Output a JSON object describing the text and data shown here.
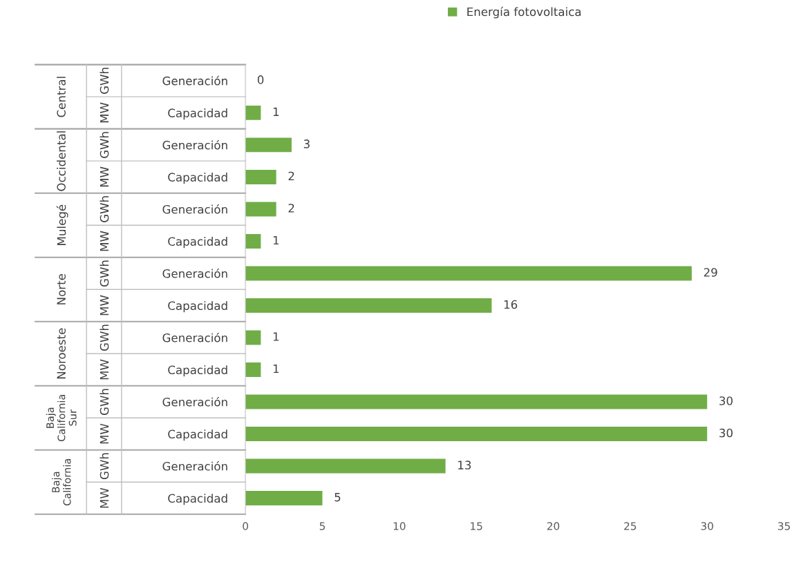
{
  "chart_data": {
    "type": "bar",
    "orientation": "horizontal",
    "categories": [
      "Generación",
      "Capacidad",
      "Generación",
      "Capacidad",
      "Generación",
      "Capacidad",
      "Generación",
      "Capacidad",
      "Generación",
      "Capacidad",
      "Generación",
      "Capacidad",
      "Generación",
      "Capacidad"
    ],
    "series": [
      {
        "name": "Energía fotovoltaica",
        "color": "#70ad47",
        "values": [
          0,
          1,
          3,
          2,
          2,
          1,
          29,
          16,
          1,
          1,
          30,
          30,
          13,
          5
        ]
      }
    ],
    "annotations": [
      "Central",
      "GWh",
      "MW",
      "Occidental",
      "GWh",
      "MW",
      "Mulegé",
      "GWh",
      "MW",
      "Norte",
      "GWh",
      "MW",
      "Noroeste",
      "GWh",
      "MW",
      "Baja California Sur",
      "GWh",
      "MW",
      "Baja California",
      "GWh",
      "MW"
    ],
    "xlim": [
      0,
      35
    ],
    "xticks": [
      0,
      5,
      10,
      15,
      20,
      25,
      30,
      35
    ],
    "data_labels": true,
    "grid": false,
    "legend": "top"
  }
}
